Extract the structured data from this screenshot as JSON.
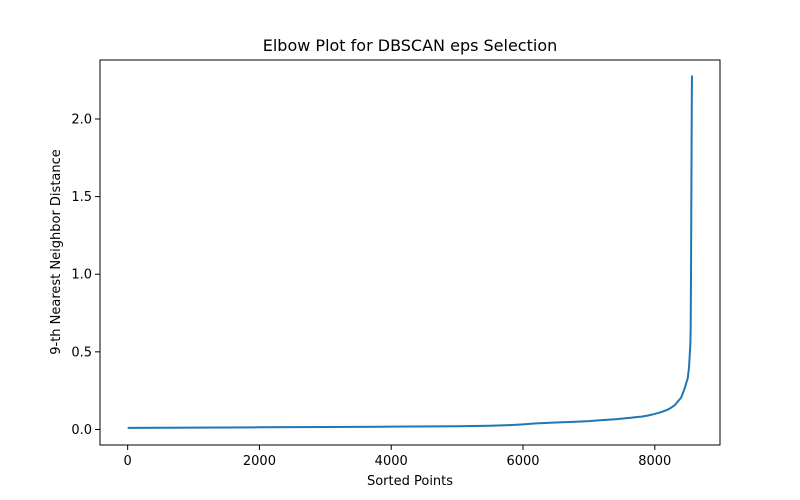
{
  "chart_data": {
    "type": "line",
    "title": "Elbow Plot for DBSCAN eps Selection",
    "xlabel": "Sorted Points",
    "ylabel": "9-th Nearest Neighbor Distance",
    "xlim": [
      -420,
      8990
    ],
    "ylim": [
      -0.1,
      2.38
    ],
    "xticks": [
      0,
      2000,
      4000,
      6000,
      8000
    ],
    "xtick_labels": [
      "0",
      "2000",
      "4000",
      "6000",
      "8000"
    ],
    "yticks": [
      0.0,
      0.5,
      1.0,
      1.5,
      2.0
    ],
    "ytick_labels": [
      "0.0",
      "0.5",
      "1.0",
      "1.5",
      "2.0"
    ],
    "grid": false,
    "line_color": "#1f77b4",
    "series": [
      {
        "x": [
          0,
          1000,
          2000,
          3000,
          4000,
          5000,
          5500,
          5800,
          6000,
          6200,
          6500,
          6800,
          7000,
          7200,
          7400,
          7600,
          7800,
          7900,
          8000,
          8100,
          8200,
          8300,
          8400,
          8450,
          8500,
          8520,
          8540,
          8545,
          8550,
          8555,
          8560,
          8562,
          8565
        ],
        "y": [
          0.01,
          0.012,
          0.014,
          0.016,
          0.018,
          0.021,
          0.024,
          0.028,
          0.033,
          0.039,
          0.045,
          0.05,
          0.054,
          0.06,
          0.066,
          0.074,
          0.083,
          0.09,
          0.1,
          0.112,
          0.128,
          0.155,
          0.205,
          0.26,
          0.33,
          0.4,
          0.55,
          0.65,
          1.0,
          1.5,
          1.95,
          2.15,
          2.28
        ]
      }
    ]
  }
}
